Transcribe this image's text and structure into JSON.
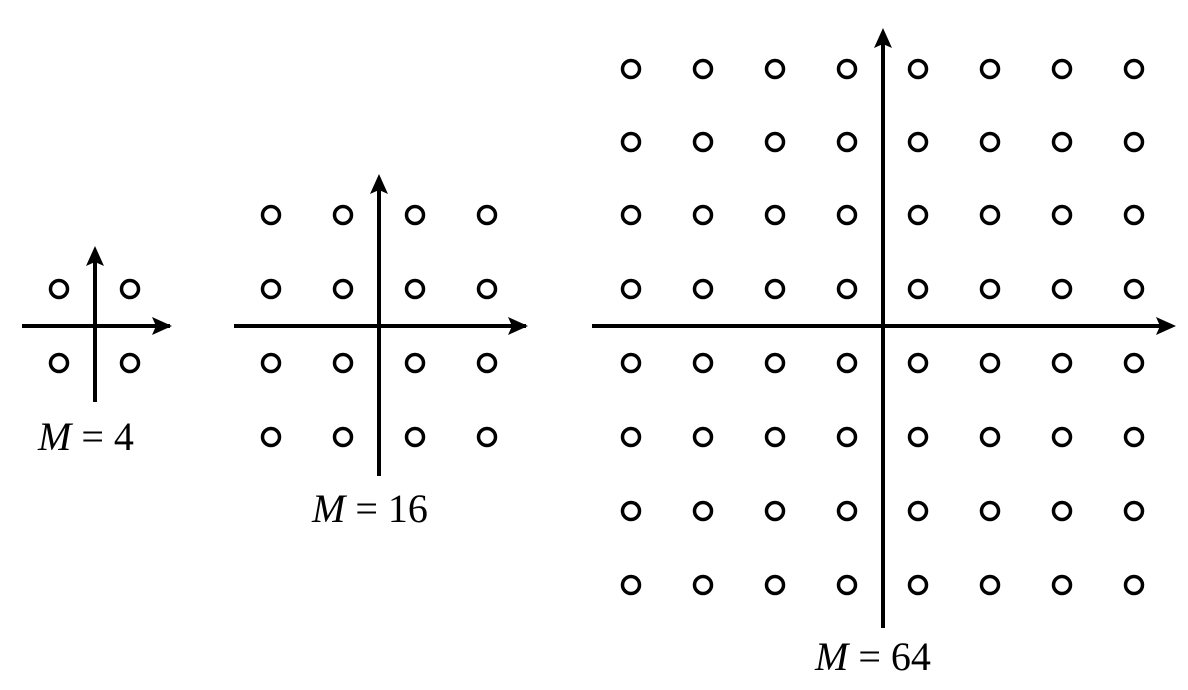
{
  "figure": {
    "background": "#ffffff",
    "ink_color": "#000000",
    "point_marker": "hollow-circle",
    "axes_arrows": true
  },
  "constellations": [
    {
      "id": "m4",
      "M": 4,
      "grid": [
        2,
        2
      ],
      "label_var": "M",
      "label_eq": " = ",
      "label_value": "4"
    },
    {
      "id": "m16",
      "M": 16,
      "grid": [
        4,
        4
      ],
      "label_var": "M",
      "label_eq": " = ",
      "label_value": "16"
    },
    {
      "id": "m64",
      "M": 64,
      "grid": [
        8,
        8
      ],
      "label_var": "M",
      "label_eq": " = ",
      "label_value": "64"
    }
  ]
}
